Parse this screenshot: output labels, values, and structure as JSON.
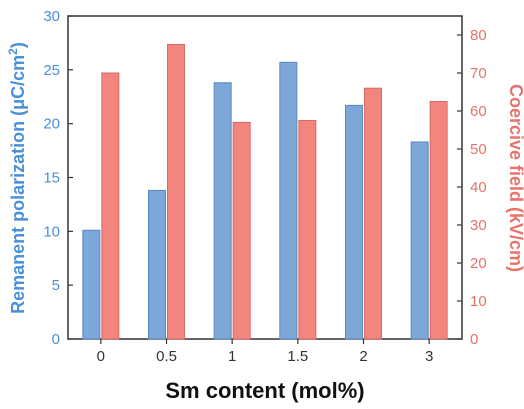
{
  "chart_data": {
    "type": "bar",
    "title": "",
    "xlabel": "Sm content (mol%)",
    "categories": [
      "0",
      "0.5",
      "1",
      "1.5",
      "2",
      "3"
    ],
    "y_left": {
      "label_main": "Remanent polarization (μC/cm",
      "label_sup": "2",
      "label_end": ")",
      "lim": [
        0,
        30
      ],
      "ticks": [
        "0",
        "5",
        "10",
        "15",
        "20",
        "25",
        "30"
      ],
      "color": "#4a90d9"
    },
    "y_right": {
      "label": "Coercive field (kV/cm)",
      "lim": [
        0,
        85
      ],
      "ticks": [
        "0",
        "10",
        "20",
        "30",
        "40",
        "50",
        "60",
        "70",
        "80"
      ],
      "color": "#e8736b"
    },
    "series": [
      {
        "axis": "left",
        "values": [
          10.1,
          13.8,
          23.8,
          25.7,
          21.7,
          18.3
        ],
        "color": "#7da7d9",
        "edge": "#5a87bd"
      },
      {
        "axis": "right",
        "values": [
          70.0,
          77.5,
          57.0,
          57.5,
          66.0,
          62.5
        ],
        "color": "#f2857e",
        "edge": "#d86a63"
      }
    ]
  }
}
